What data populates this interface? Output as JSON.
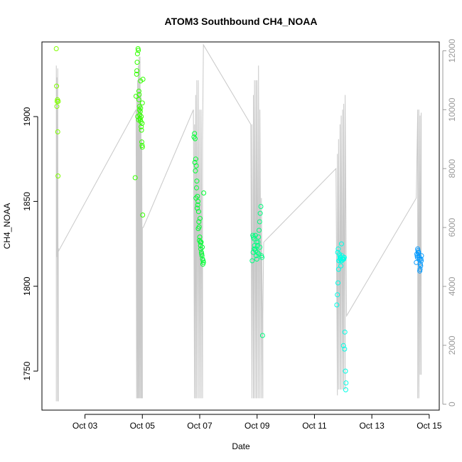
{
  "chart_data": {
    "type": "scatter",
    "title": "ATOM3 Southbound CH4_NOAA",
    "xlabel": "Date",
    "ylabel": "CH4_NOAA",
    "xlim": [
      1.5,
      15.35
    ],
    "ylim": [
      1727,
      1944
    ],
    "y2lim": [
      -200,
      12300
    ],
    "x_ticks": [
      3,
      5,
      7,
      9,
      11,
      13,
      15
    ],
    "x_tick_labels": [
      "Oct 03",
      "Oct 05",
      "Oct 07",
      "Oct 09",
      "Oct 11",
      "Oct 13",
      "Oct 15"
    ],
    "y_ticks": [
      1750,
      1800,
      1850,
      1900
    ],
    "y_tick_labels": [
      "1750",
      "1800",
      "1850",
      "1900"
    ],
    "y2_ticks": [
      0,
      2000,
      4000,
      6000,
      8000,
      10000,
      12000
    ],
    "y2_tick_labels": [
      "0",
      "2000",
      "4000",
      "6000",
      "8000",
      "10000",
      "12000"
    ],
    "grid": false,
    "altitude_series": {
      "color": "#c8c8c8",
      "x": [
        2.0,
        2.0,
        2.02,
        2.02,
        2.05,
        2.05,
        2.05,
        2.07,
        2.07,
        2.08,
        4.78,
        4.8,
        4.8,
        4.83,
        4.83,
        4.86,
        4.86,
        4.89,
        4.89,
        4.92,
        4.92,
        4.95,
        4.95,
        4.98,
        4.98,
        5.0,
        5.0,
        5.03,
        6.78,
        6.82,
        6.82,
        6.86,
        6.86,
        6.9,
        6.9,
        6.95,
        6.95,
        7.0,
        7.0,
        7.05,
        7.05,
        7.1,
        7.1,
        7.13,
        8.78,
        8.82,
        8.82,
        8.87,
        8.87,
        8.91,
        8.91,
        8.96,
        8.96,
        9.0,
        9.0,
        9.05,
        9.05,
        9.1,
        9.1,
        9.15,
        9.15,
        9.2,
        9.2,
        9.23,
        11.75,
        11.8,
        11.8,
        11.84,
        11.84,
        11.89,
        11.89,
        11.93,
        11.93,
        11.98,
        11.98,
        12.02,
        12.02,
        12.07,
        12.07,
        12.12,
        14.55,
        14.6,
        14.6,
        14.64,
        14.64,
        14.68,
        14.68,
        14.72,
        14.72
      ],
      "y": [
        100,
        11500,
        5000,
        11100,
        100,
        5100,
        11400,
        100,
        5300,
        5200,
        10000,
        200,
        10500,
        200,
        11000,
        200,
        11500,
        200,
        11800,
        200,
        11800,
        200,
        10500,
        200,
        9000,
        200,
        6000,
        6000,
        10000,
        200,
        9500,
        200,
        10500,
        200,
        11000,
        200,
        11000,
        200,
        10000,
        200,
        10000,
        200,
        9000,
        12200,
        9500,
        200,
        9500,
        200,
        10500,
        200,
        11000,
        200,
        11000,
        200,
        11000,
        200,
        11500,
        200,
        10000,
        200,
        7000,
        200,
        3000,
        5500,
        8000,
        300,
        8500,
        500,
        9000,
        500,
        9500,
        500,
        9800,
        500,
        10000,
        500,
        10200,
        500,
        10500,
        3000,
        7000,
        10000,
        200,
        10000,
        200,
        9800,
        1000,
        9900,
        1000
      ]
    },
    "series": [
      {
        "color": "#80ff00",
        "x": [
          2.0,
          2.01,
          2.02,
          2.03,
          2.04,
          2.05,
          2.06,
          2.07
        ],
        "y": [
          1940,
          1918,
          1906,
          1909,
          1910,
          1891,
          1865,
          1909
        ]
      },
      {
        "color": "#33ff00",
        "x": [
          4.75,
          4.78,
          4.8,
          4.82,
          4.83,
          4.85,
          4.86,
          4.88,
          4.89,
          4.9,
          4.91,
          4.92,
          4.93,
          4.94,
          4.95,
          4.96,
          4.97,
          4.98,
          4.99,
          5.0,
          5.01,
          5.02,
          4.84,
          4.87,
          4.93,
          4.96,
          4.99,
          4.81,
          4.88,
          4.94,
          5.0,
          4.9
        ],
        "y": [
          1864,
          1912,
          1925,
          1932,
          1937,
          1940,
          1939,
          1915,
          1913,
          1906,
          1901,
          1899,
          1898,
          1905,
          1897,
          1894,
          1892,
          1885,
          1883,
          1882,
          1842,
          1922,
          1900,
          1898,
          1903,
          1900,
          1896,
          1927,
          1910,
          1921,
          1908,
          1904
        ]
      },
      {
        "color": "#00ff33",
        "x": [
          6.8,
          6.82,
          6.84,
          6.86,
          6.88,
          6.9,
          6.92,
          6.94,
          6.96,
          6.98,
          7.0,
          7.02,
          7.04,
          7.06,
          7.08,
          7.1,
          7.12,
          7.14,
          6.85,
          6.89,
          6.93,
          6.97,
          7.01,
          7.05,
          7.09,
          6.83,
          6.87,
          6.91,
          6.95,
          6.99,
          7.03,
          7.07,
          7.11,
          7.13
        ],
        "y": [
          1888,
          1890,
          1887,
          1875,
          1871,
          1862,
          1853,
          1850,
          1844,
          1835,
          1829,
          1826,
          1822,
          1820,
          1818,
          1816,
          1815,
          1855,
          1868,
          1858,
          1848,
          1838,
          1840,
          1826,
          1823,
          1873,
          1852,
          1846,
          1834,
          1827,
          1824,
          1819,
          1813,
          1814
        ]
      },
      {
        "color": "#00ff80",
        "x": [
          8.83,
          8.85,
          8.87,
          8.89,
          8.91,
          8.93,
          8.95,
          8.97,
          8.99,
          9.01,
          9.03,
          9.05,
          9.07,
          9.09,
          9.11,
          9.13,
          9.15,
          9.17,
          9.19,
          8.86,
          8.9,
          8.94,
          8.98,
          9.02,
          9.06,
          9.1
        ],
        "y": [
          1815,
          1830,
          1829,
          1828,
          1824,
          1822,
          1821,
          1818,
          1816,
          1820,
          1826,
          1829,
          1833,
          1838,
          1843,
          1847,
          1818,
          1817,
          1771,
          1820,
          1822,
          1830,
          1826,
          1824,
          1819,
          1823
        ]
      },
      {
        "color": "#00ffe6",
        "x": [
          11.78,
          11.8,
          11.82,
          11.84,
          11.86,
          11.88,
          11.9,
          11.92,
          11.94,
          11.96,
          11.98,
          12.0,
          12.02,
          12.04,
          12.06,
          12.08,
          12.1,
          11.81,
          11.85,
          11.89,
          11.93,
          11.97,
          12.01,
          12.05,
          12.09,
          11.83,
          11.87,
          11.91,
          11.95,
          11.99,
          12.03
        ],
        "y": [
          1789,
          1795,
          1802,
          1810,
          1815,
          1818,
          1816,
          1812,
          1825,
          1818,
          1816,
          1816,
          1816,
          1817,
          1773,
          1750,
          1743,
          1820,
          1815,
          1817,
          1815,
          1816,
          1765,
          1763,
          1739,
          1822,
          1819,
          1817,
          1815,
          1816,
          1817
        ]
      },
      {
        "color": "#0099ff",
        "x": [
          14.55,
          14.58,
          14.6,
          14.62,
          14.64,
          14.66,
          14.68,
          14.7,
          14.72,
          14.57,
          14.61,
          14.65,
          14.69,
          14.73,
          14.59,
          14.63,
          14.67,
          14.71
        ],
        "y": [
          1814,
          1818,
          1822,
          1820,
          1818,
          1816,
          1810,
          1812,
          1815,
          1819,
          1821,
          1817,
          1813,
          1818,
          1817,
          1820,
          1809,
          1816
        ]
      }
    ]
  }
}
